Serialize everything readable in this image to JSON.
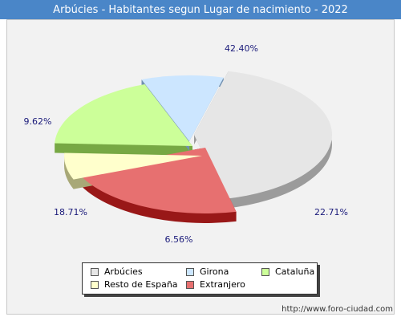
{
  "title": "Arbúcies - Habitantes segun Lugar de nacimiento - 2022",
  "credit": "http://www.foro-ciudad.com",
  "chart_data": {
    "type": "pie",
    "title": "Arbúcies - Habitantes segun Lugar de nacimiento - 2022",
    "slices": [
      {
        "name": "Arbúcies",
        "value": 42.4,
        "label": "42.40%",
        "color": "#e6e6e6",
        "side": "#9b9b9b"
      },
      {
        "name": "Extranjero",
        "value": 22.71,
        "label": "22.71%",
        "color": "#e77070",
        "side": "#991818"
      },
      {
        "name": "Resto de España",
        "value": 6.56,
        "label": "6.56%",
        "color": "#ffffcc",
        "side": "#a8a877"
      },
      {
        "name": "Cataluña",
        "value": 18.71,
        "label": "18.71%",
        "color": "#ccff99",
        "side": "#77a844"
      },
      {
        "name": "Girona",
        "value": 9.62,
        "label": "9.62%",
        "color": "#cce6ff",
        "side": "#7090b0"
      }
    ],
    "legend": {
      "placement": "bottom",
      "entries": [
        {
          "name": "Arbúcies",
          "color": "#e6e6e6"
        },
        {
          "name": "Girona",
          "color": "#cce6ff"
        },
        {
          "name": "Cataluña",
          "color": "#ccff99"
        },
        {
          "name": "Resto de España",
          "color": "#ffffcc"
        },
        {
          "name": "Extranjero",
          "color": "#e77070"
        }
      ]
    }
  }
}
